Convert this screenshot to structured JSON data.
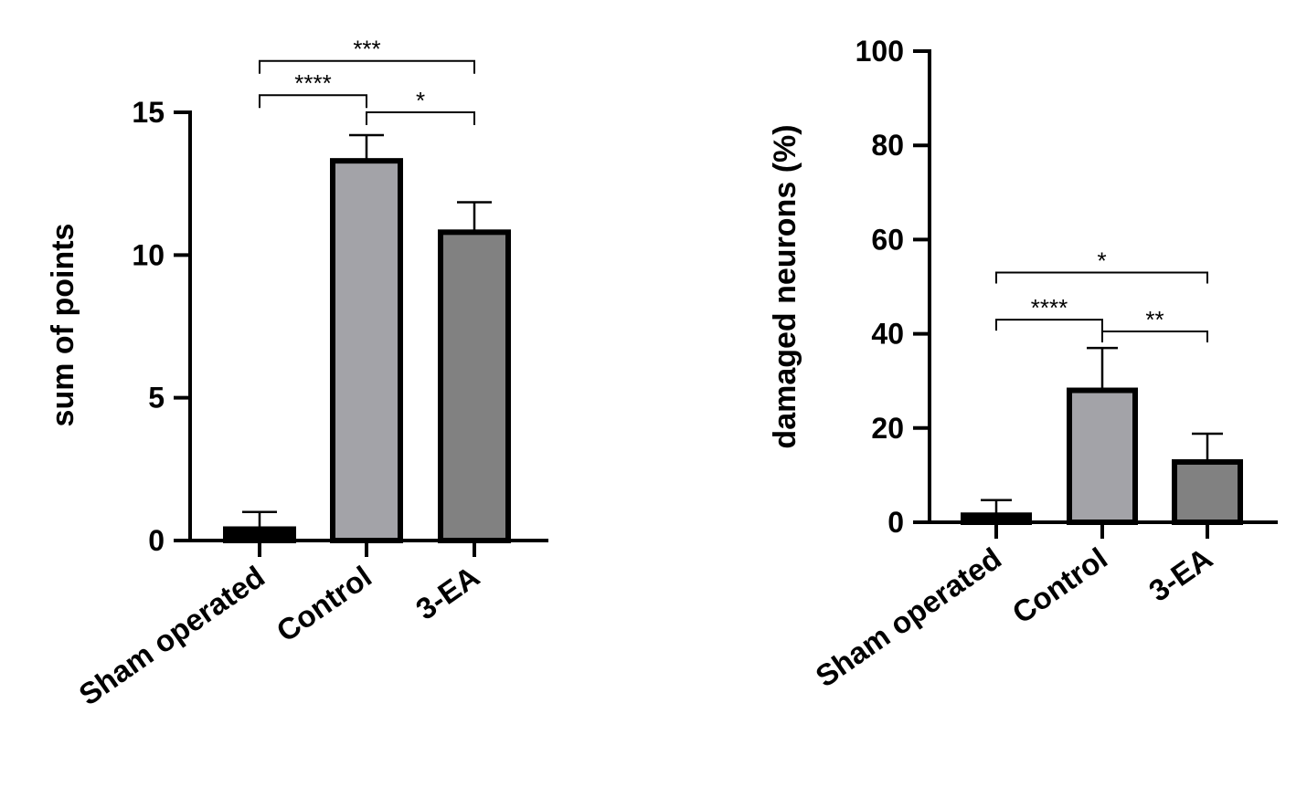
{
  "chart_data": [
    {
      "type": "bar",
      "title": "",
      "xlabel": "",
      "ylabel": "sum of points",
      "categories": [
        "Sham operated",
        "Control",
        "3-EA"
      ],
      "values": [
        0.4,
        13.3,
        10.8
      ],
      "errors": [
        0.6,
        0.9,
        1.05
      ],
      "bar_colors": [
        "#000000",
        "#a3a3a8",
        "#818181"
      ],
      "ylim": [
        0,
        15
      ],
      "yticks": [
        {
          "value": 0,
          "label": "0"
        },
        {
          "value": 5,
          "label": "5"
        },
        {
          "value": 10,
          "label": "10"
        },
        {
          "value": 15,
          "label": "15"
        }
      ],
      "grid": false,
      "legend": "none",
      "significance": [
        {
          "from": 0,
          "to": 2,
          "level": 16.8,
          "label": "***"
        },
        {
          "from": 0,
          "to": 1,
          "level": 15.6,
          "label": "****"
        },
        {
          "from": 1,
          "to": 2,
          "level": 15.0,
          "label": "*"
        }
      ]
    },
    {
      "type": "bar",
      "title": "",
      "xlabel": "",
      "ylabel": "damaged neurons (%)",
      "categories": [
        "Sham operated",
        "Control",
        "3-EA"
      ],
      "values": [
        1.5,
        28,
        12.8
      ],
      "errors": [
        3.2,
        9,
        6
      ],
      "bar_colors": [
        "#000000",
        "#a3a3a8",
        "#818181"
      ],
      "ylim": [
        0,
        100
      ],
      "yticks": [
        {
          "value": 0,
          "label": "0"
        },
        {
          "value": 20,
          "label": "20"
        },
        {
          "value": 40,
          "label": "40"
        },
        {
          "value": 60,
          "label": "60"
        },
        {
          "value": 80,
          "label": "80"
        },
        {
          "value": 100,
          "label": "100"
        }
      ],
      "grid": false,
      "legend": "none",
      "significance": [
        {
          "from": 0,
          "to": 2,
          "level": 53,
          "label": "*"
        },
        {
          "from": 0,
          "to": 1,
          "level": 43,
          "label": "****"
        },
        {
          "from": 1,
          "to": 2,
          "level": 40.5,
          "label": "**"
        }
      ]
    }
  ]
}
